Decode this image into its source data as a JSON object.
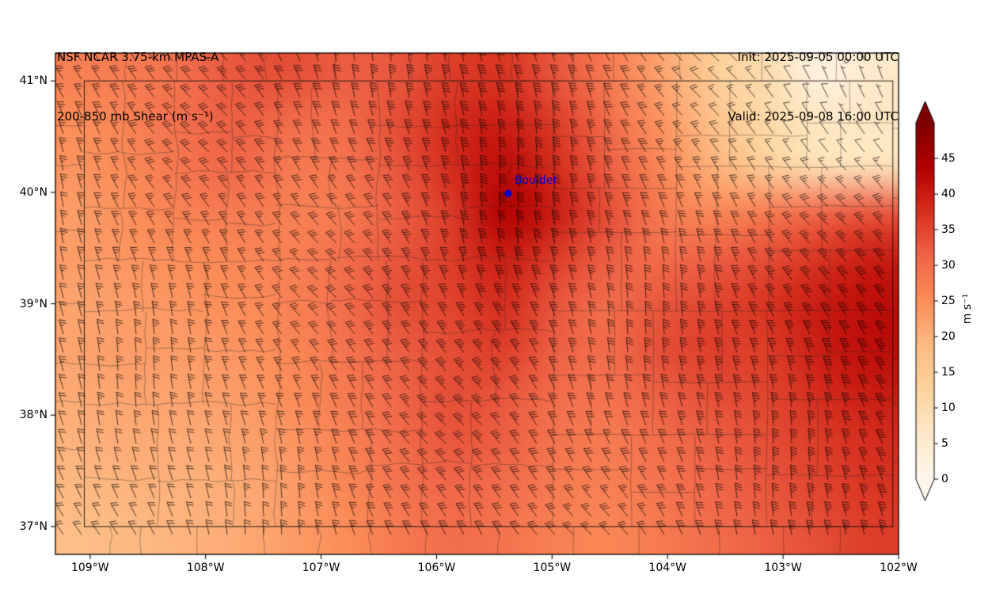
{
  "chart_data": {
    "type": "heatmap",
    "title": "NSF NCAR 3.75-km MPAS-A",
    "subtitle": "200-850 mb Shear (m s⁻¹)",
    "init_label": "Init: 2025-09-05 00:00 UTC",
    "valid_label": "Valid: 2025-09-08 16:00 UTC",
    "x_ticks": [
      "109°W",
      "108°W",
      "107°W",
      "106°W",
      "105°W",
      "104°W",
      "103°W",
      "102°W"
    ],
    "x_tick_lons": [
      -109,
      -108,
      -107,
      -106,
      -105,
      -104,
      -103,
      -102
    ],
    "y_ticks": [
      "41°N",
      "40°N",
      "39°N",
      "38°N",
      "37°N"
    ],
    "y_tick_lats": [
      41,
      40,
      39,
      38,
      37
    ],
    "extent": {
      "lon_min": -109.3,
      "lon_max": -102.0,
      "lat_min": 36.75,
      "lat_max": 41.25
    },
    "state_border": {
      "lon_min": -109.05,
      "lon_max": -102.05,
      "lat_min": 37.0,
      "lat_max": 41.0
    },
    "marker": {
      "name": "Boulder",
      "lon": -105.38,
      "lat": 39.99,
      "color": "#0000cd"
    },
    "colorbar": {
      "label": "m s⁻¹",
      "vmin": 0,
      "vmax": 50,
      "ticks": [
        0,
        5,
        10,
        15,
        20,
        25,
        30,
        35,
        40,
        45
      ],
      "extend": "both",
      "stops": [
        [
          0.0,
          "#fff7ec"
        ],
        [
          0.125,
          "#fee8c8"
        ],
        [
          0.25,
          "#fdd49e"
        ],
        [
          0.375,
          "#fdbb84"
        ],
        [
          0.5,
          "#fc8d59"
        ],
        [
          0.625,
          "#ef6548"
        ],
        [
          0.75,
          "#d7301f"
        ],
        [
          0.875,
          "#b30000"
        ],
        [
          1.0,
          "#7f0000"
        ]
      ]
    },
    "shear_grid": {
      "units": "m s⁻¹",
      "lons": [
        -109.3,
        -108.81,
        -108.33,
        -107.84,
        -107.35,
        -106.87,
        -106.38,
        -105.89,
        -105.41,
        -104.92,
        -104.43,
        -103.95,
        -103.46,
        -102.97,
        -102.49,
        -102.0
      ],
      "lats": [
        41.25,
        40.8,
        40.35,
        39.9,
        39.45,
        39.0,
        38.55,
        38.1,
        37.65,
        37.2,
        36.75
      ],
      "values": [
        [
          27,
          28,
          30,
          33,
          34,
          32,
          33,
          36,
          37,
          33,
          28,
          22,
          14,
          10,
          2,
          6
        ],
        [
          25,
          27,
          30,
          32,
          30,
          30,
          34,
          38,
          40,
          36,
          30,
          24,
          17,
          11,
          7,
          7
        ],
        [
          24,
          26,
          29,
          31,
          28,
          29,
          33,
          38,
          42,
          38,
          32,
          26,
          20,
          14,
          9,
          8
        ],
        [
          23,
          25,
          27,
          28,
          27,
          28,
          32,
          36,
          44,
          40,
          34,
          28,
          26,
          28,
          31,
          33
        ],
        [
          23,
          24,
          25,
          26,
          27,
          30,
          33,
          36,
          40,
          36,
          32,
          30,
          32,
          34,
          37,
          40
        ],
        [
          22,
          23,
          24,
          25,
          27,
          30,
          34,
          35,
          38,
          33,
          30,
          33,
          35,
          37,
          40,
          42
        ],
        [
          22,
          23,
          23,
          24,
          26,
          29,
          32,
          34,
          36,
          32,
          30,
          34,
          36,
          36,
          40,
          42
        ],
        [
          21,
          22,
          22,
          23,
          25,
          28,
          31,
          34,
          33,
          30,
          29,
          32,
          34,
          35,
          38,
          40
        ],
        [
          20,
          21,
          21,
          22,
          24,
          27,
          30,
          33,
          32,
          29,
          28,
          30,
          32,
          34,
          36,
          38
        ],
        [
          19,
          20,
          20,
          21,
          23,
          26,
          29,
          31,
          30,
          28,
          27,
          29,
          31,
          33,
          35,
          37
        ],
        [
          18,
          19,
          20,
          21,
          23,
          25,
          28,
          30,
          29,
          27,
          26,
          28,
          30,
          32,
          34,
          36
        ]
      ]
    },
    "barbs": {
      "convention": "direction wind is from, meteorological degrees",
      "direction_from_deg": 335,
      "half_barb": 5,
      "full_barb": 10,
      "pennant": 50
    }
  }
}
